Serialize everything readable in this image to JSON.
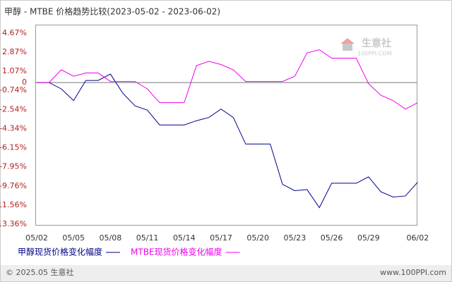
{
  "chart_data": {
    "type": "line",
    "title": "甲醇 - MTBE 价格趋势比较(2023-05-02 - 2023-06-02)",
    "categories": [
      "05/02",
      null,
      null,
      "05/05",
      null,
      null,
      "05/08",
      null,
      null,
      "05/11",
      null,
      null,
      "05/14",
      null,
      null,
      "05/17",
      null,
      null,
      "05/20",
      null,
      null,
      "05/23",
      null,
      null,
      "05/26",
      null,
      null,
      "05/29",
      null,
      null,
      null,
      "06/02"
    ],
    "series": [
      {
        "name": "甲醇现货价格变化幅度",
        "color": "#00008b",
        "values": [
          0,
          0,
          -0.6,
          -1.7,
          0.2,
          0.2,
          0.8,
          -1.0,
          -2.2,
          -2.6,
          -4.0,
          -4.0,
          -4.0,
          -3.6,
          -3.3,
          -2.5,
          -3.3,
          -5.8,
          -5.8,
          -5.8,
          -9.6,
          -10.2,
          -10.1,
          -11.8,
          -9.5,
          -9.5,
          -9.5,
          -8.9,
          -10.3,
          -10.8,
          -10.7,
          -9.4
        ]
      },
      {
        "name": "MTBE现货价格变化幅度",
        "color": "#ee00ee",
        "values": [
          0,
          0,
          1.2,
          0.6,
          0.9,
          0.9,
          0.1,
          0.1,
          0.1,
          -0.6,
          -1.9,
          -1.9,
          -1.9,
          1.6,
          2.0,
          1.7,
          1.2,
          0.1,
          0.1,
          0.1,
          0.1,
          0.6,
          2.8,
          3.1,
          2.3,
          2.3,
          2.3,
          -0.1,
          -1.2,
          -1.7,
          -2.5,
          -1.9
        ]
      }
    ],
    "ylim": [
      -13.43,
      5.46
    ],
    "yticks": [
      {
        "value": 4.67,
        "label": "4.67%"
      },
      {
        "value": 2.87,
        "label": "2.87%"
      },
      {
        "value": 1.07,
        "label": "1.07%"
      },
      0,
      {
        "value": -0.74,
        "label": "-0.74%"
      },
      {
        "value": -2.54,
        "label": "-2.54%"
      },
      {
        "value": -4.34,
        "label": "-4.34%"
      },
      {
        "value": -6.15,
        "label": "-6.15%"
      },
      {
        "value": -7.95,
        "label": "-7.95%"
      },
      {
        "value": -9.76,
        "label": "-9.76%"
      },
      {
        "value": -11.56,
        "label": "-11.56%"
      },
      {
        "value": -13.36,
        "label": "-13.36%"
      }
    ],
    "watermark": {
      "name": "生意社",
      "url": "100PPI.COM"
    },
    "footer": {
      "left": "© 2025.05 生意社",
      "right": "www.100PPI.com"
    }
  }
}
